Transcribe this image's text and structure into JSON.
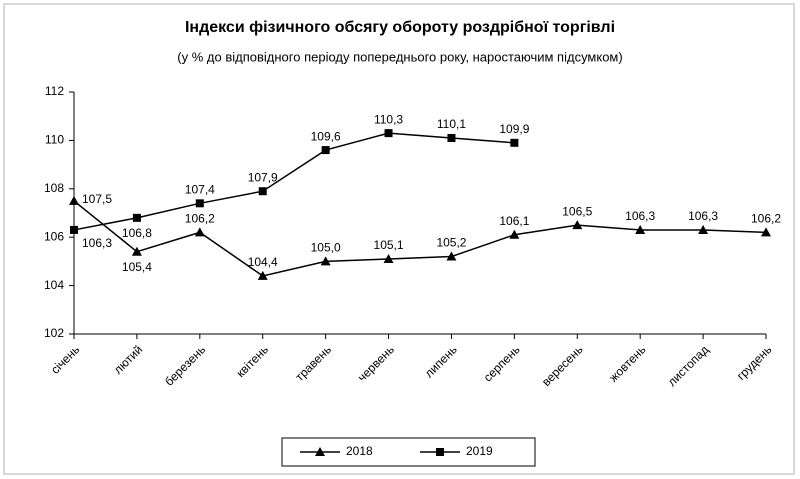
{
  "chart_data": {
    "type": "line",
    "title": "Індекси фізичного обсягу обороту роздрібної торгівлі",
    "subtitle": "(у % до відповідного періоду попереднього року, наростаючим підсумком)",
    "categories": [
      "січень",
      "лютий",
      "березень",
      "квітень",
      "травень",
      "червень",
      "липень",
      "серпень",
      "вересень",
      "жовтень",
      "листопад",
      "грудень"
    ],
    "series": [
      {
        "name": "2018",
        "color": "#000000",
        "marker": "triangle",
        "values": [
          107.5,
          105.4,
          106.2,
          104.4,
          105.0,
          105.1,
          105.2,
          106.1,
          106.5,
          106.3,
          106.3,
          106.2
        ],
        "value_labels": [
          "107,5",
          "105,4",
          "106,2",
          "104,4",
          "105,0",
          "105,1",
          "105,2",
          "106,1",
          "106,5",
          "106,3",
          "106,3",
          "106,2"
        ]
      },
      {
        "name": "2019",
        "color": "#000000",
        "marker": "square",
        "values": [
          106.3,
          106.8,
          107.4,
          107.9,
          109.6,
          110.3,
          110.1,
          109.9,
          null,
          null,
          null,
          null
        ],
        "value_labels": [
          "106,3",
          "106,8",
          "107,4",
          "107,9",
          "109,6",
          "110,3",
          "110,1",
          "109,9",
          null,
          null,
          null,
          null
        ]
      }
    ],
    "ylim": [
      102,
      112
    ],
    "yticks": [
      102,
      104,
      106,
      108,
      110,
      112
    ],
    "grid": false,
    "legend": "bottom"
  }
}
